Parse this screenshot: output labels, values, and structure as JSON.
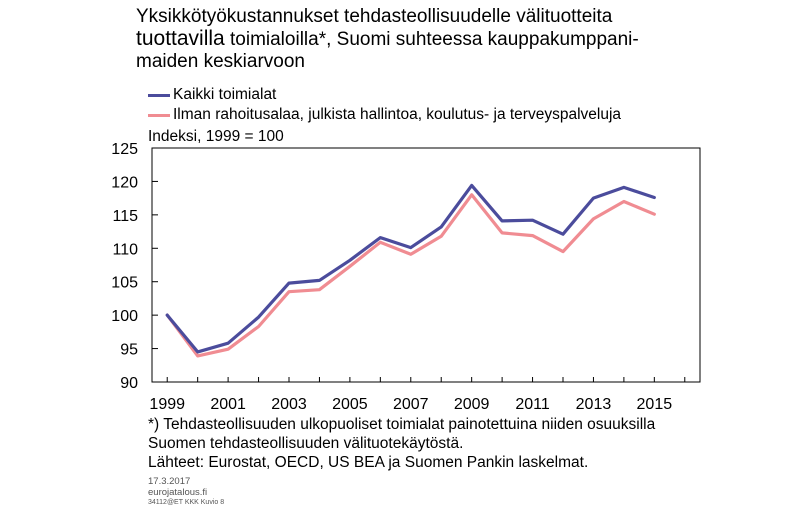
{
  "title_line1": "Yksikkötyökustannukset tehdasteollisuudelle välituotteita",
  "title_line2_big": "tuottavilla",
  "title_line2_rest": " toimialoilla*, Suomi suhteessa kauppakumppani-",
  "title_line3": "maiden keskiarvoon",
  "unit_label": "Indeksi, 1999 = 100",
  "footnote_line1": "*) Tehdasteollisuuden ulkopuoliset toimialat painotettuina niiden osuuksilla",
  "footnote_line2": "Suomen tehdasteollisuuden välituotekäytöstä.",
  "sources": "Lähteet: Eurostat, OECD, US BEA ja Suomen Pankin laskelmat.",
  "date": "17.3.2017",
  "site": "eurojatalous.fi",
  "code": "34112@ET KKK Kuvio 8",
  "chart_data": {
    "type": "line",
    "x": [
      1999,
      2000,
      2001,
      2002,
      2003,
      2004,
      2005,
      2006,
      2007,
      2008,
      2009,
      2010,
      2011,
      2012,
      2013,
      2014,
      2015
    ],
    "series": [
      {
        "name": "Kaikki toimialat",
        "color": "#4B4C9C",
        "values": [
          100,
          94.5,
          95.8,
          99.7,
          104.8,
          105.2,
          108.2,
          111.6,
          110.1,
          113.2,
          119.4,
          114.1,
          114.2,
          112.1,
          117.5,
          119.1,
          117.6
        ]
      },
      {
        "name": "Ilman rahoitusalaa, julkista hallintoa, koulutus- ja terveyspalveluja",
        "color": "#F08C92",
        "values": [
          100,
          93.9,
          94.9,
          98.3,
          103.5,
          103.8,
          107.3,
          110.9,
          109.1,
          111.8,
          118.0,
          112.3,
          111.9,
          109.5,
          114.4,
          117.0,
          115.1
        ]
      }
    ],
    "xticks": [
      "1999",
      "2001",
      "2003",
      "2005",
      "2007",
      "2009",
      "2011",
      "2013",
      "2015"
    ],
    "yticks": [
      "90",
      "95",
      "100",
      "105",
      "110",
      "115",
      "120",
      "125"
    ],
    "ylim": [
      90,
      125
    ],
    "xlim": [
      1998.5,
      2016.5
    ],
    "grid": false,
    "legend_position": "top-left"
  }
}
